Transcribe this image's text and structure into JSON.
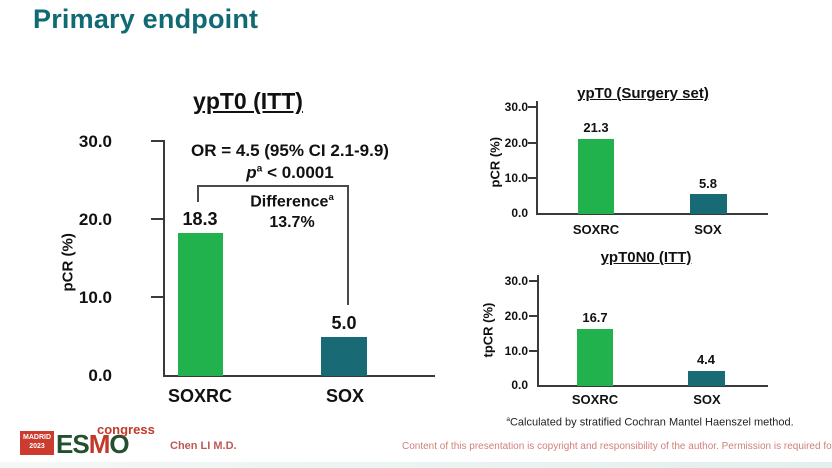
{
  "slide_title": "Primary endpoint",
  "colors": {
    "title_teal": "#0f6a73",
    "bar_green": "#21b24e",
    "bar_teal": "#186a75",
    "footer_red": "#d0807c"
  },
  "chart_data": [
    {
      "type": "bar",
      "title": "ypT0 (ITT)",
      "ylabel": "pCR (%)",
      "ylim": [
        0,
        30
      ],
      "ytick_labels": [
        "30.0",
        "20.0",
        "10.0",
        "0.0"
      ],
      "categories": [
        "SOXRC",
        "SOX"
      ],
      "values": [
        18.3,
        5.0
      ],
      "value_labels": [
        "18.3",
        "5.0"
      ],
      "colors": [
        "#21b24e",
        "#186a75"
      ],
      "grid": false,
      "annotations": {
        "or_text": "OR = 4.5 (95% CI 2.1-9.9)",
        "p_symbol": "p",
        "p_sup": "a",
        "p_rest": "< 0.0001",
        "difference_label": "Difference",
        "difference_sup": "a",
        "difference_value": "13.7%"
      }
    },
    {
      "type": "bar",
      "title": "ypT0 (Surgery set)",
      "ylabel": "pCR (%)",
      "ylim": [
        0,
        30
      ],
      "ytick_labels": [
        "30.0",
        "20.0",
        "10.0",
        "0.0"
      ],
      "categories": [
        "SOXRC",
        "SOX"
      ],
      "values": [
        21.3,
        5.8
      ],
      "value_labels": [
        "21.3",
        "5.8"
      ],
      "colors": [
        "#21b24e",
        "#186a75"
      ],
      "grid": false
    },
    {
      "type": "bar",
      "title": "ypT0N0 (ITT)",
      "ylabel": "tpCR (%)",
      "ylim": [
        0,
        30
      ],
      "ytick_labels": [
        "30.0",
        "20.0",
        "10.0",
        "0.0"
      ],
      "categories": [
        "SOXRC",
        "SOX"
      ],
      "values": [
        16.7,
        4.4
      ],
      "value_labels": [
        "16.7",
        "4.4"
      ],
      "colors": [
        "#21b24e",
        "#186a75"
      ],
      "grid": false
    }
  ],
  "footnote": {
    "sup": "a",
    "text": "Calculated by stratified Cochran Mantel Haenszel method."
  },
  "footer": {
    "logo": {
      "city": "MADRID",
      "year": "2023",
      "org_part1": "ES",
      "org_part2": "M",
      "org_part3": "O",
      "event": "congress"
    },
    "presenter": "Chen LI M.D.",
    "copyright": "Content of this presentation is copyright and responsibility of the author. Permission is required for re-use."
  }
}
